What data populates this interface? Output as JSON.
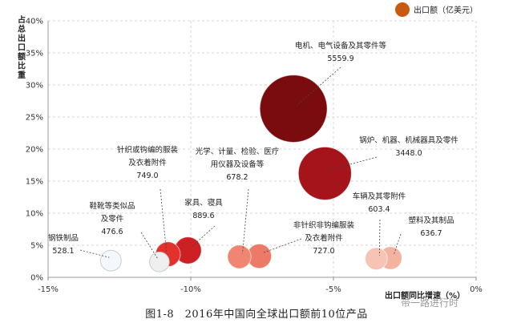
{
  "caption": "图1-8　2016年中国向全球出口额前10位产品",
  "watermark": "带一路进行时",
  "chart_data": {
    "type": "scatter",
    "bubble": true,
    "xlabel": "出口额同比增速（%）",
    "ylabel": "占总出口额比重",
    "xlim": [
      -15,
      0
    ],
    "ylim": [
      0,
      40
    ],
    "xticks": [
      "-15%",
      "-10%",
      "-5%",
      "0%"
    ],
    "yticks": [
      "0%",
      "5%",
      "10%",
      "15%",
      "20%",
      "25%",
      "30%",
      "35%",
      "40%"
    ],
    "grid": true,
    "legend": {
      "position": "top-right",
      "label": "出口额（亿美元）",
      "color": "#c85a12"
    },
    "points": [
      {
        "name": [
          "电机、电气设备及其零件等"
        ],
        "value": "5559.9",
        "x": -6.4,
        "y": 26.3,
        "size": 5559.9,
        "color": "#7a0c10"
      },
      {
        "name": [
          "锅炉、机器、机械器具及零件"
        ],
        "value": "3448.0",
        "x": -5.3,
        "y": 16.2,
        "size": 3448.0,
        "color": "#a5141a"
      },
      {
        "name": [
          "针织或钩编的服装",
          "及衣着附件"
        ],
        "value": "749.0",
        "x": -10.8,
        "y": 3.6,
        "size": 749.0,
        "color": "#e3312d"
      },
      {
        "name": [
          "家具、寝具"
        ],
        "value": "889.6",
        "x": -10.1,
        "y": 4.2,
        "size": 889.6,
        "color": "#cc2024"
      },
      {
        "name": [
          "光学、计量、检验、医疗",
          "用仪器及设备等"
        ],
        "value": "678.2",
        "x": -8.3,
        "y": 3.2,
        "size": 678.2,
        "color": "#f08672"
      },
      {
        "name": [
          "非针织非钩编服装",
          "及衣着附件"
        ],
        "value": "727.0",
        "x": -7.6,
        "y": 3.3,
        "size": 727.0,
        "color": "#ec7a66"
      },
      {
        "name": [
          "车辆及其零附件"
        ],
        "value": "603.4",
        "x": -3.5,
        "y": 2.9,
        "size": 603.4,
        "color": "#f6c3b4"
      },
      {
        "name": [
          "塑料及其制品"
        ],
        "value": "636.7",
        "x": -3.0,
        "y": 3.0,
        "size": 636.7,
        "color": "#f3b3a1"
      },
      {
        "name": [
          "鞋靴等类似品",
          "及零件"
        ],
        "value": "476.6",
        "x": -11.1,
        "y": 2.4,
        "size": 476.6,
        "color": "#efefef"
      },
      {
        "name": [
          "钢铁制品"
        ],
        "value": "528.1",
        "x": -12.8,
        "y": 2.6,
        "size": 528.1,
        "color": "#f4f7fb"
      }
    ]
  }
}
